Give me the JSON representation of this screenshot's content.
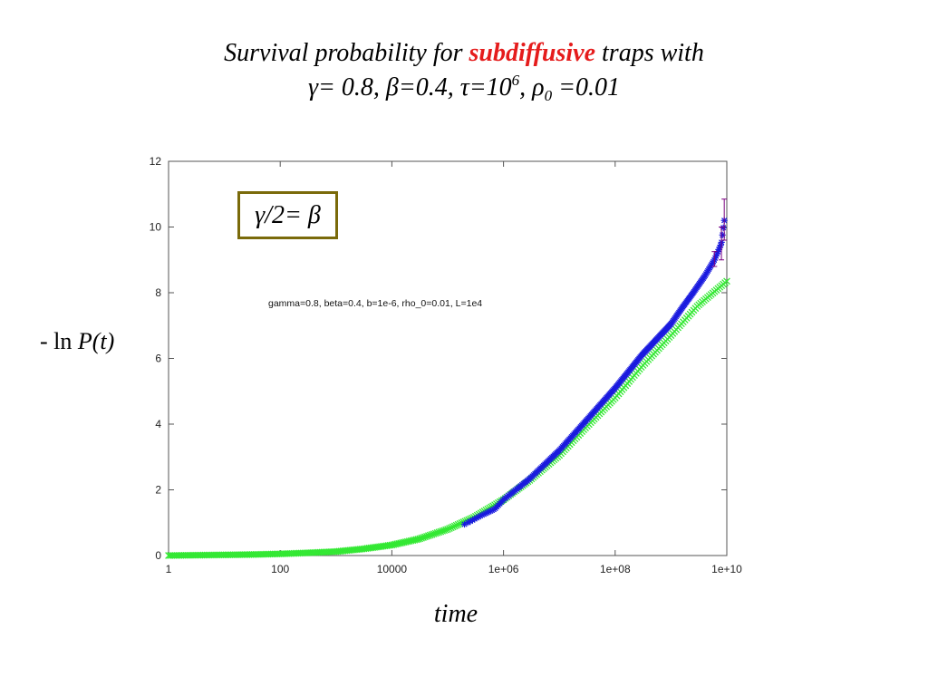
{
  "title": {
    "line1_a": "Survival probability for ",
    "line1_b": "subdiffusive",
    "line1_c": " traps with",
    "line2_a": "γ= 0.8, β=0.4, τ=10",
    "line2_b": "6",
    "line2_c": ", ρ",
    "line2_d": "0",
    "line2_e": " =0.01"
  },
  "relation_box": "γ/2= β",
  "ylabel_prefix": "- ln ",
  "ylabel_func": "P(t)",
  "xlabel": "time",
  "colors": {
    "title_highlight": "#e51c1c",
    "series_sim": "#1a1adf",
    "series_fit": "#33e833",
    "errorbar": "#7a0080",
    "box_border": "#7a6a0a"
  },
  "chart_data": {
    "type": "scatter",
    "xscale": "log",
    "xlim": [
      1,
      10000000000
    ],
    "ylim": [
      0,
      12
    ],
    "xticks": [
      1,
      100,
      10000,
      1000000,
      100000000,
      10000000000
    ],
    "xtick_labels": [
      "1",
      "100",
      "10000",
      "1e+06",
      "1e+08",
      "1e+10"
    ],
    "yticks": [
      0,
      2,
      4,
      6,
      8,
      10,
      12
    ],
    "ytick_labels": [
      "0",
      "2",
      "4",
      "6",
      "8",
      "10",
      "12"
    ],
    "annotation": "gamma=0.8, beta=0.4, b=1e-6,  rho_0=0.01,  L=1e4",
    "series": [
      {
        "marker": "x",
        "color": "#33e833",
        "points": [
          [
            1,
            0.0
          ],
          [
            3,
            0.01
          ],
          [
            10,
            0.02
          ],
          [
            30,
            0.03
          ],
          [
            100,
            0.05
          ],
          [
            300,
            0.08
          ],
          [
            1000,
            0.12
          ],
          [
            3000,
            0.2
          ],
          [
            10000,
            0.32
          ],
          [
            30000,
            0.5
          ],
          [
            100000,
            0.8
          ],
          [
            300000,
            1.17
          ],
          [
            1000000,
            1.7
          ],
          [
            3000000,
            2.3
          ],
          [
            10000000,
            3.05
          ],
          [
            30000000,
            3.9
          ],
          [
            100000000,
            4.8
          ],
          [
            300000000,
            5.75
          ],
          [
            1000000000,
            6.7
          ],
          [
            3000000000,
            7.6
          ],
          [
            10000000000,
            8.35
          ]
        ]
      },
      {
        "marker": "*",
        "color": "#1a1adf",
        "points": [
          [
            200000,
            0.95
          ],
          [
            400000,
            1.22
          ],
          [
            700000,
            1.42
          ],
          [
            1000000,
            1.7
          ],
          [
            3000000,
            2.35
          ],
          [
            10000000,
            3.2
          ],
          [
            30000000,
            4.1
          ],
          [
            100000000,
            5.1
          ],
          [
            300000000,
            6.1
          ],
          [
            1000000000,
            7.05
          ],
          [
            1600000000,
            7.55
          ],
          [
            2500000000,
            8.0
          ],
          [
            4000000000,
            8.5
          ],
          [
            6000000000,
            9.0
          ],
          [
            8000000000,
            9.5
          ],
          [
            9000000000,
            10.2
          ]
        ],
        "error_bars": [
          [
            6000000000,
            8.8,
            9.25
          ],
          [
            8000000000,
            9.0,
            10.0
          ],
          [
            9000000000,
            9.6,
            10.85
          ]
        ]
      }
    ]
  }
}
